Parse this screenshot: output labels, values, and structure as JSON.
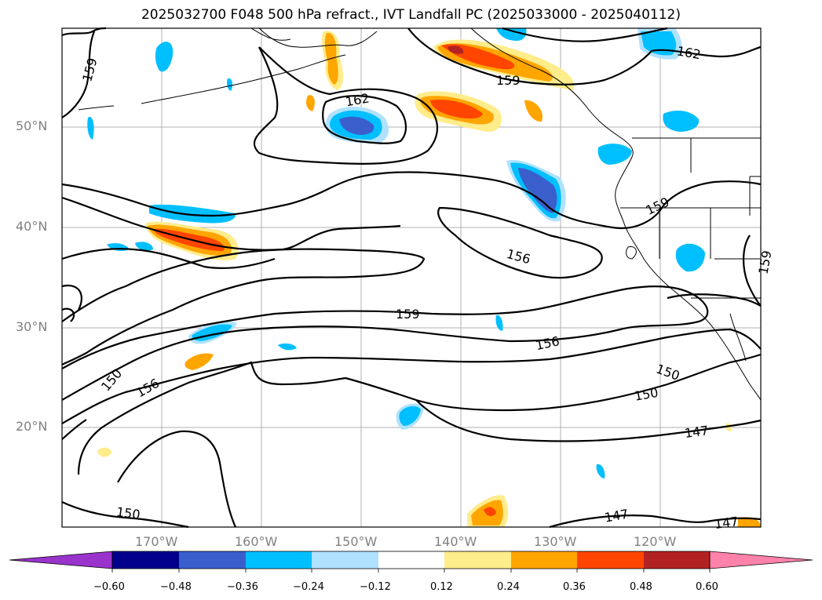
{
  "title": "2025032700 F048 500 hPa refract., IVT Landfall PC (2025033000 - 2025040112)",
  "map": {
    "lat_labels": [
      "50°N",
      "40°N",
      "30°N",
      "20°N"
    ],
    "lon_labels": [
      "170°W",
      "160°W",
      "150°W",
      "140°W",
      "130°W",
      "120°W"
    ],
    "contour_labels": [
      "159",
      "162",
      "159",
      "162",
      "159",
      "156",
      "159",
      "156",
      "150",
      "156",
      "150",
      "150",
      "147",
      "147",
      "150",
      "147",
      "159"
    ],
    "colors": {
      "neg_060": "#9933cc",
      "neg_048": "#00008b",
      "neg_036": "#3a5fcd",
      "neg_024": "#00bfff",
      "neg_012": "#b0e2ff",
      "pos_012": "#ffec8b",
      "pos_024": "#ffa500",
      "pos_036": "#ff4500",
      "pos_048": "#b22222",
      "pos_060": "#ff82ab"
    }
  },
  "colorbar": {
    "ticks": [
      "−0.60",
      "−0.48",
      "−0.36",
      "−0.24",
      "−0.12",
      "0.12",
      "0.24",
      "0.36",
      "0.48",
      "0.60"
    ]
  }
}
